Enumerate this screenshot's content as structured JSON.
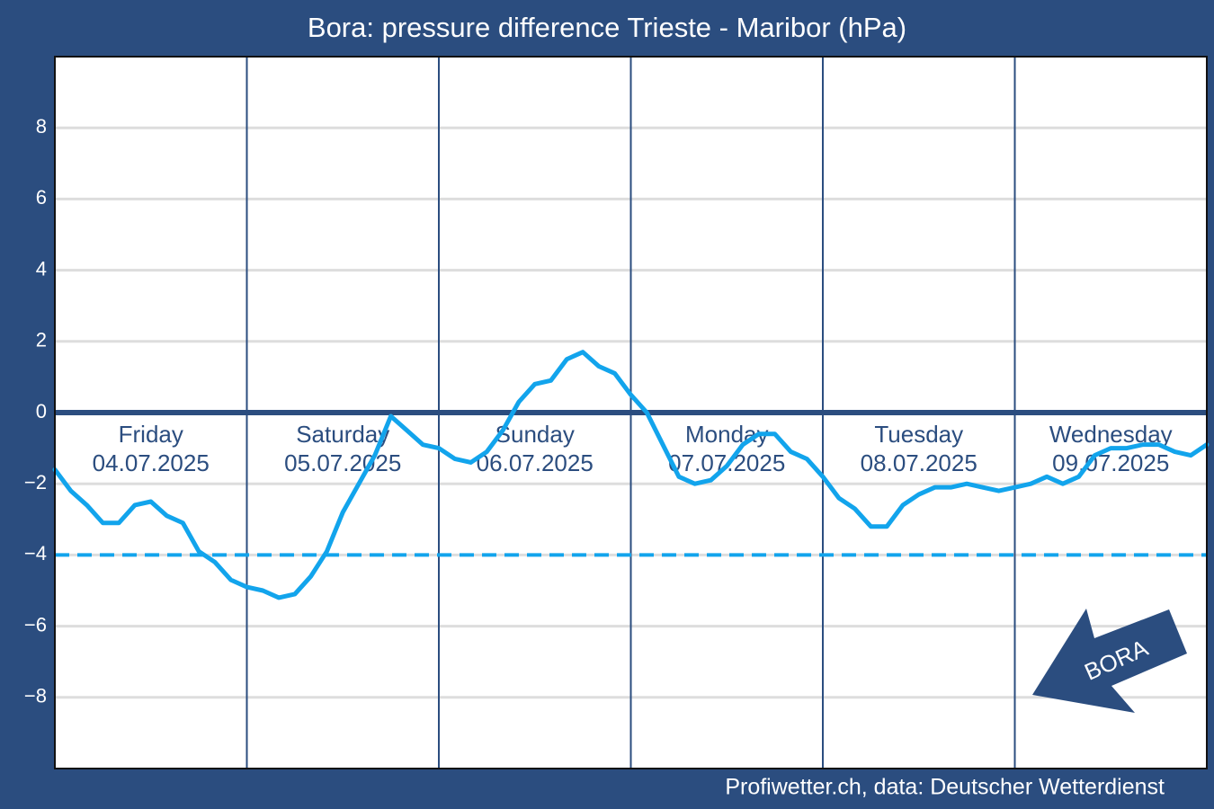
{
  "chart_data": {
    "type": "line",
    "title": "Bora: pressure difference Trieste - Maribor (hPa)",
    "source": "Profiwetter.ch, data: Deutscher Wetterdienst",
    "annotation": "BORA",
    "days": [
      {
        "name": "Friday",
        "date": "04.07.2025"
      },
      {
        "name": "Saturday",
        "date": "05.07.2025"
      },
      {
        "name": "Sunday",
        "date": "06.07.2025"
      },
      {
        "name": "Monday",
        "date": "07.07.2025"
      },
      {
        "name": "Tuesday",
        "date": "08.07.2025"
      },
      {
        "name": "Wednesday",
        "date": "09.07.2025"
      }
    ],
    "x": [
      0,
      2,
      4,
      6,
      8,
      10,
      12,
      14,
      16,
      18,
      20,
      22,
      24,
      26,
      28,
      30,
      32,
      34,
      36,
      38,
      40,
      42,
      44,
      46,
      48,
      50,
      52,
      54,
      56,
      58,
      60,
      62,
      64,
      66,
      68,
      70,
      72,
      74,
      76,
      78,
      80,
      82,
      84,
      86,
      88,
      90,
      92,
      94,
      96,
      98,
      100,
      102,
      104,
      106,
      108,
      110,
      112,
      114,
      116,
      118,
      120,
      122,
      124,
      126,
      128,
      130,
      132,
      134,
      136,
      138,
      140,
      142,
      144
    ],
    "series": [
      {
        "color": "#12a4ec",
        "values": [
          -1.6,
          -2.2,
          -2.6,
          -3.1,
          -3.1,
          -2.6,
          -2.5,
          -2.9,
          -3.1,
          -3.9,
          -4.2,
          -4.7,
          -4.9,
          -5.0,
          -5.2,
          -5.1,
          -4.6,
          -3.9,
          -2.8,
          -2.0,
          -1.2,
          -0.1,
          -0.5,
          -0.9,
          -1.0,
          -1.3,
          -1.4,
          -1.1,
          -0.5,
          0.3,
          0.8,
          0.9,
          1.5,
          1.7,
          1.3,
          1.1,
          0.5,
          0.0,
          -0.9,
          -1.8,
          -2.0,
          -1.9,
          -1.5,
          -0.9,
          -0.6,
          -0.6,
          -1.1,
          -1.3,
          -1.8,
          -2.4,
          -2.7,
          -3.2,
          -3.2,
          -2.6,
          -2.3,
          -2.1,
          -2.1,
          -2.0,
          -2.1,
          -2.2,
          -2.1,
          -2.0,
          -1.8,
          -2.0,
          -1.8,
          -1.2,
          -1.0,
          -1.0,
          -0.9,
          -0.9,
          -1.1,
          -1.2,
          -0.9
        ]
      }
    ],
    "threshold": -4,
    "threshold_color": "#12a4ec",
    "xlim": [
      0,
      144
    ],
    "ylim": [
      -10,
      10
    ],
    "yticks": [
      {
        "value": -8,
        "label": "−8"
      },
      {
        "value": -6,
        "label": "−6"
      },
      {
        "value": -4,
        "label": "−4"
      },
      {
        "value": -2,
        "label": "−2"
      },
      0,
      2,
      4,
      6,
      8
    ],
    "grid": true
  }
}
